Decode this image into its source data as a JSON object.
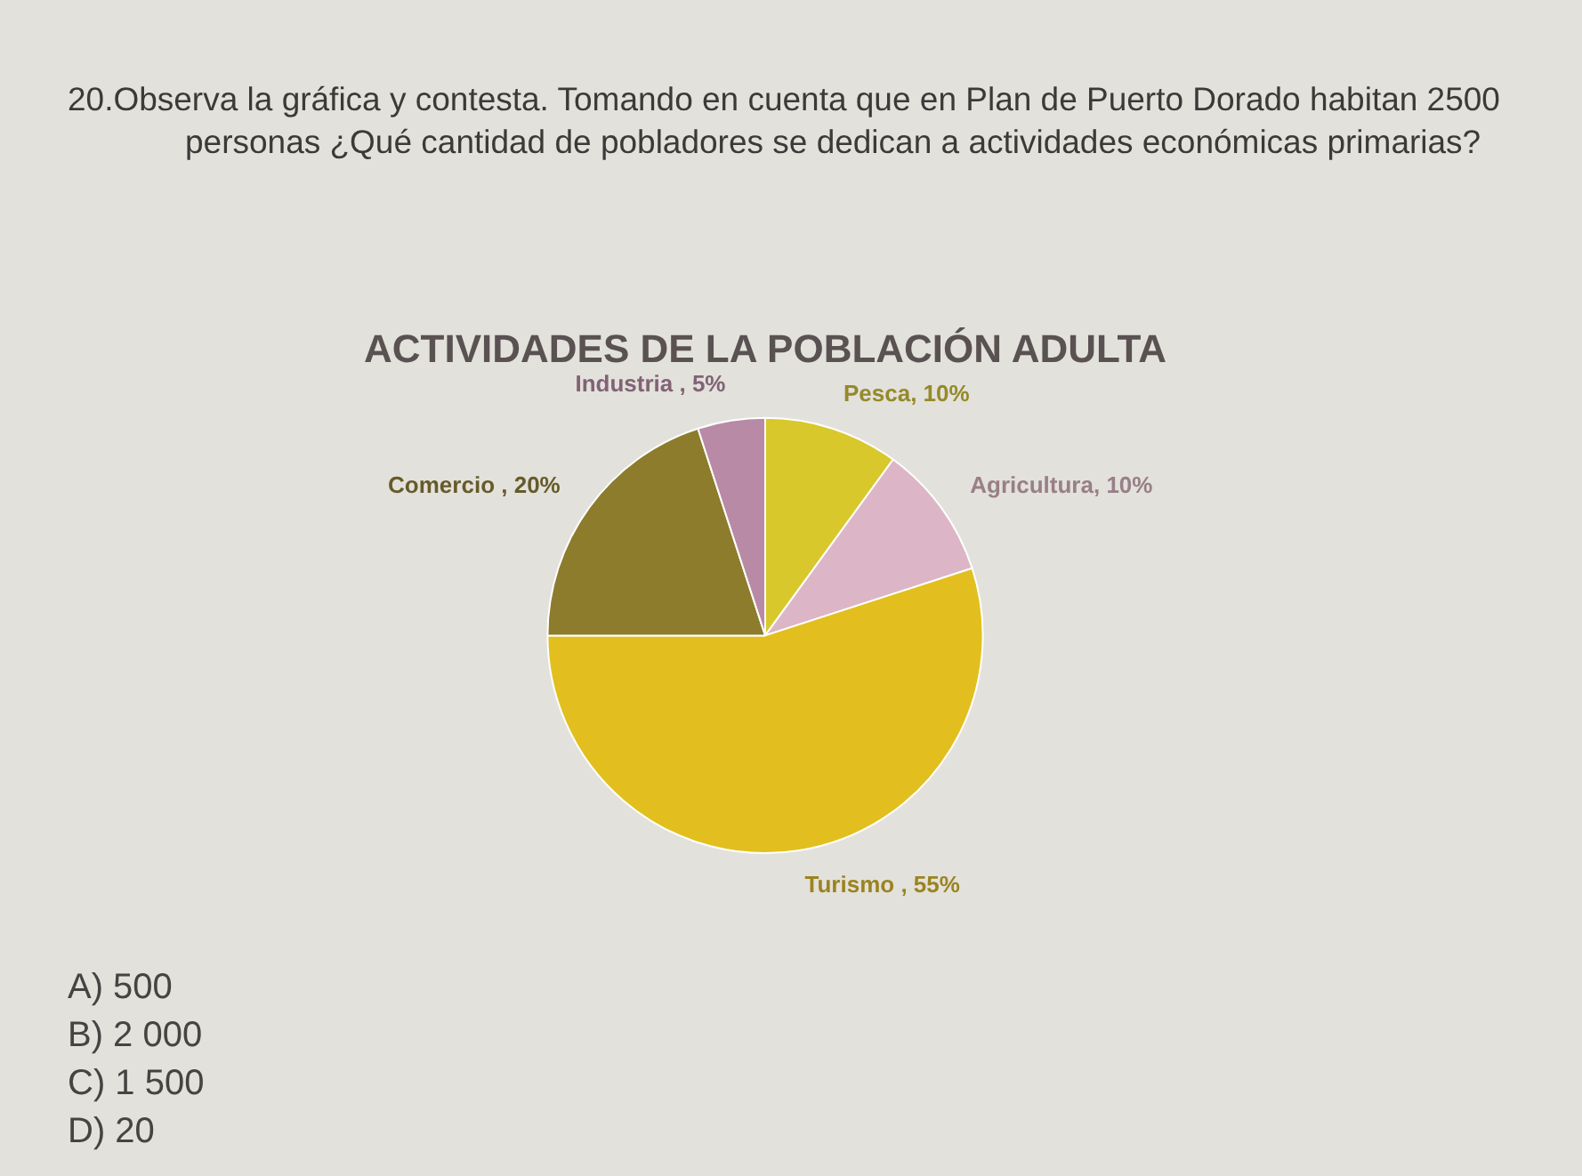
{
  "chart_data": {
    "type": "pie",
    "title": "ACTIVIDADES DE LA POBLACIÓN ADULTA",
    "categories": [
      "Pesca",
      "Agricultura",
      "Turismo",
      "Comercio",
      "Industria"
    ],
    "values": [
      10,
      10,
      55,
      20,
      5
    ],
    "colors": [
      "#d8c82c",
      "#dcb6c6",
      "#e2bf1e",
      "#8c7c2c",
      "#b88aa6"
    ],
    "value_labels": [
      ", 10%",
      ", 10%",
      " , 55%",
      " , 20%",
      " , 5%"
    ],
    "annotations": [
      "20.Observa la gráfica y contesta. Tomando en cuenta que en Plan de Puerto Dorado habitan 2500 personas ¿Qué cantidad de pobladores se dedican a actividades económicas primarias?",
      "A) 500",
      "B) 2 000",
      "C) 1 500",
      "D) 20"
    ]
  }
}
